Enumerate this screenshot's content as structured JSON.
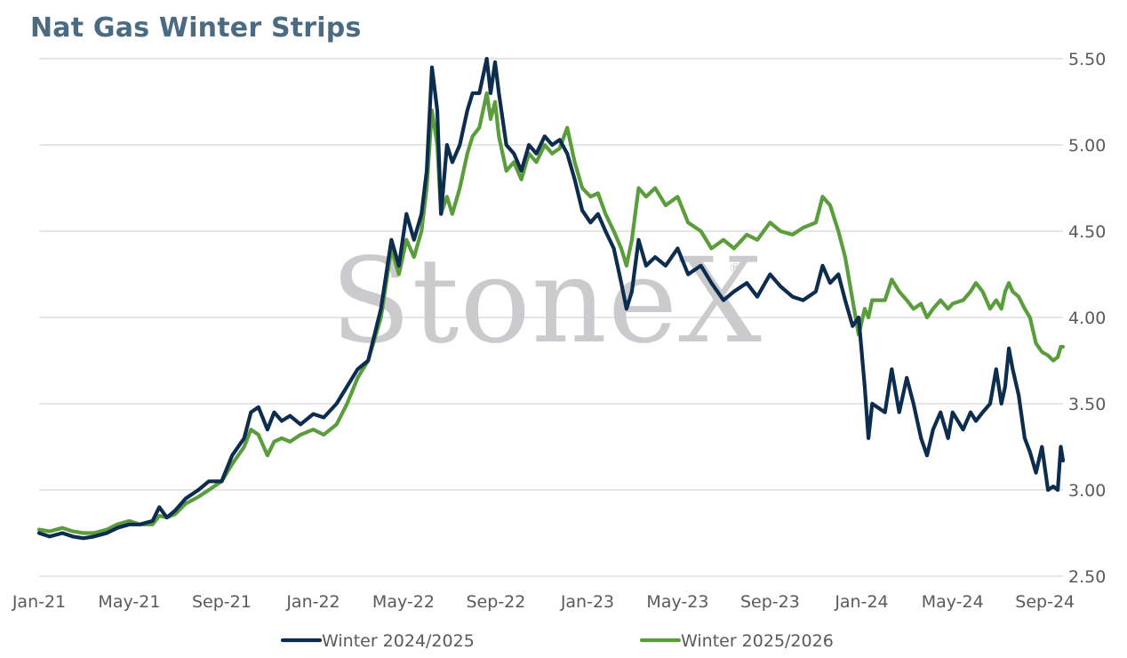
{
  "chart_title": "Nat Gas Winter Strips",
  "watermark": "StoneX",
  "chart_data": {
    "type": "line",
    "title": "Nat Gas Winter Strips",
    "xlabel": "",
    "ylabel": "",
    "x_ticks": [
      "Jan-21",
      "May-21",
      "Sep-21",
      "Jan-22",
      "May-22",
      "Sep-22",
      "Jan-23",
      "May-23",
      "Sep-23",
      "Jan-24",
      "May-24",
      "Sep-24"
    ],
    "y_ticks": [
      "2.50",
      "3.00",
      "3.50",
      "4.00",
      "4.50",
      "5.00",
      "5.50"
    ],
    "ylim": [
      2.5,
      5.5
    ],
    "xlim": [
      "2021-01-01",
      "2024-09-25"
    ],
    "y_axis_side": "right",
    "grid": "horizontal",
    "legend_position": "bottom",
    "series": [
      {
        "name": "Winter 2024/2025",
        "color": "#0d2d4e",
        "points": [
          [
            "2021-01-01",
            2.75
          ],
          [
            "2021-01-15",
            2.73
          ],
          [
            "2021-02-01",
            2.75
          ],
          [
            "2021-02-15",
            2.73
          ],
          [
            "2021-03-01",
            2.72
          ],
          [
            "2021-03-15",
            2.73
          ],
          [
            "2021-04-01",
            2.75
          ],
          [
            "2021-04-15",
            2.78
          ],
          [
            "2021-05-01",
            2.8
          ],
          [
            "2021-05-15",
            2.8
          ],
          [
            "2021-06-01",
            2.82
          ],
          [
            "2021-06-10",
            2.9
          ],
          [
            "2021-06-20",
            2.84
          ],
          [
            "2021-07-01",
            2.88
          ],
          [
            "2021-07-15",
            2.95
          ],
          [
            "2021-08-01",
            3.0
          ],
          [
            "2021-08-15",
            3.05
          ],
          [
            "2021-09-01",
            3.05
          ],
          [
            "2021-09-15",
            3.2
          ],
          [
            "2021-10-01",
            3.3
          ],
          [
            "2021-10-10",
            3.45
          ],
          [
            "2021-10-20",
            3.48
          ],
          [
            "2021-11-01",
            3.35
          ],
          [
            "2021-11-10",
            3.45
          ],
          [
            "2021-11-20",
            3.4
          ],
          [
            "2021-12-01",
            3.43
          ],
          [
            "2021-12-15",
            3.38
          ],
          [
            "2022-01-01",
            3.44
          ],
          [
            "2022-01-15",
            3.42
          ],
          [
            "2022-02-01",
            3.5
          ],
          [
            "2022-02-15",
            3.6
          ],
          [
            "2022-03-01",
            3.7
          ],
          [
            "2022-03-15",
            3.75
          ],
          [
            "2022-04-01",
            4.05
          ],
          [
            "2022-04-15",
            4.45
          ],
          [
            "2022-04-25",
            4.3
          ],
          [
            "2022-05-05",
            4.6
          ],
          [
            "2022-05-15",
            4.45
          ],
          [
            "2022-05-25",
            4.6
          ],
          [
            "2022-06-01",
            4.85
          ],
          [
            "2022-06-08",
            5.45
          ],
          [
            "2022-06-15",
            5.2
          ],
          [
            "2022-06-20",
            4.6
          ],
          [
            "2022-06-28",
            5.0
          ],
          [
            "2022-07-05",
            4.9
          ],
          [
            "2022-07-15",
            5.0
          ],
          [
            "2022-07-25",
            5.2
          ],
          [
            "2022-08-01",
            5.3
          ],
          [
            "2022-08-10",
            5.3
          ],
          [
            "2022-08-20",
            5.5
          ],
          [
            "2022-08-25",
            5.3
          ],
          [
            "2022-08-31",
            5.48
          ],
          [
            "2022-09-05",
            5.3
          ],
          [
            "2022-09-15",
            5.0
          ],
          [
            "2022-09-25",
            4.95
          ],
          [
            "2022-10-05",
            4.85
          ],
          [
            "2022-10-15",
            5.0
          ],
          [
            "2022-10-25",
            4.95
          ],
          [
            "2022-11-05",
            5.05
          ],
          [
            "2022-11-15",
            5.0
          ],
          [
            "2022-11-25",
            5.03
          ],
          [
            "2022-12-05",
            4.95
          ],
          [
            "2022-12-15",
            4.8
          ],
          [
            "2022-12-25",
            4.62
          ],
          [
            "2023-01-05",
            4.55
          ],
          [
            "2023-01-15",
            4.6
          ],
          [
            "2023-01-25",
            4.5
          ],
          [
            "2023-02-05",
            4.4
          ],
          [
            "2023-02-15",
            4.2
          ],
          [
            "2023-02-22",
            4.05
          ],
          [
            "2023-03-01",
            4.15
          ],
          [
            "2023-03-10",
            4.45
          ],
          [
            "2023-03-20",
            4.3
          ],
          [
            "2023-04-01",
            4.35
          ],
          [
            "2023-04-15",
            4.3
          ],
          [
            "2023-05-01",
            4.4
          ],
          [
            "2023-05-15",
            4.25
          ],
          [
            "2023-06-01",
            4.3
          ],
          [
            "2023-06-15",
            4.2
          ],
          [
            "2023-07-01",
            4.1
          ],
          [
            "2023-07-15",
            4.15
          ],
          [
            "2023-08-01",
            4.2
          ],
          [
            "2023-08-15",
            4.12
          ],
          [
            "2023-09-01",
            4.25
          ],
          [
            "2023-09-15",
            4.18
          ],
          [
            "2023-10-01",
            4.12
          ],
          [
            "2023-10-15",
            4.1
          ],
          [
            "2023-11-01",
            4.15
          ],
          [
            "2023-11-10",
            4.3
          ],
          [
            "2023-11-20",
            4.2
          ],
          [
            "2023-12-01",
            4.25
          ],
          [
            "2023-12-10",
            4.1
          ],
          [
            "2023-12-20",
            3.95
          ],
          [
            "2023-12-28",
            4.0
          ],
          [
            "2024-01-05",
            3.6
          ],
          [
            "2024-01-10",
            3.3
          ],
          [
            "2024-01-15",
            3.5
          ],
          [
            "2024-02-01",
            3.45
          ],
          [
            "2024-02-10",
            3.7
          ],
          [
            "2024-02-20",
            3.45
          ],
          [
            "2024-03-01",
            3.65
          ],
          [
            "2024-03-10",
            3.5
          ],
          [
            "2024-03-20",
            3.3
          ],
          [
            "2024-03-28",
            3.2
          ],
          [
            "2024-04-05",
            3.35
          ],
          [
            "2024-04-15",
            3.45
          ],
          [
            "2024-04-25",
            3.3
          ],
          [
            "2024-05-01",
            3.45
          ],
          [
            "2024-05-15",
            3.35
          ],
          [
            "2024-05-25",
            3.45
          ],
          [
            "2024-06-01",
            3.4
          ],
          [
            "2024-06-10",
            3.45
          ],
          [
            "2024-06-20",
            3.5
          ],
          [
            "2024-06-28",
            3.7
          ],
          [
            "2024-07-05",
            3.5
          ],
          [
            "2024-07-10",
            3.6
          ],
          [
            "2024-07-15",
            3.82
          ],
          [
            "2024-07-20",
            3.7
          ],
          [
            "2024-07-28",
            3.55
          ],
          [
            "2024-08-05",
            3.3
          ],
          [
            "2024-08-12",
            3.22
          ],
          [
            "2024-08-20",
            3.1
          ],
          [
            "2024-08-28",
            3.25
          ],
          [
            "2024-09-05",
            3.0
          ],
          [
            "2024-09-12",
            3.02
          ],
          [
            "2024-09-18",
            3.0
          ],
          [
            "2024-09-22",
            3.25
          ],
          [
            "2024-09-25",
            3.17
          ]
        ]
      },
      {
        "name": "Winter 2025/2026",
        "color": "#5b9d3c",
        "points": [
          [
            "2021-01-01",
            2.77
          ],
          [
            "2021-01-15",
            2.76
          ],
          [
            "2021-02-01",
            2.78
          ],
          [
            "2021-02-15",
            2.76
          ],
          [
            "2021-03-01",
            2.75
          ],
          [
            "2021-03-15",
            2.75
          ],
          [
            "2021-04-01",
            2.77
          ],
          [
            "2021-04-15",
            2.8
          ],
          [
            "2021-05-01",
            2.82
          ],
          [
            "2021-05-15",
            2.8
          ],
          [
            "2021-06-01",
            2.8
          ],
          [
            "2021-06-10",
            2.85
          ],
          [
            "2021-06-20",
            2.84
          ],
          [
            "2021-07-01",
            2.86
          ],
          [
            "2021-07-15",
            2.92
          ],
          [
            "2021-08-01",
            2.96
          ],
          [
            "2021-08-15",
            3.0
          ],
          [
            "2021-09-01",
            3.05
          ],
          [
            "2021-09-15",
            3.15
          ],
          [
            "2021-10-01",
            3.25
          ],
          [
            "2021-10-10",
            3.35
          ],
          [
            "2021-10-20",
            3.32
          ],
          [
            "2021-11-01",
            3.2
          ],
          [
            "2021-11-10",
            3.28
          ],
          [
            "2021-11-20",
            3.3
          ],
          [
            "2021-12-01",
            3.28
          ],
          [
            "2021-12-15",
            3.32
          ],
          [
            "2022-01-01",
            3.35
          ],
          [
            "2022-01-15",
            3.32
          ],
          [
            "2022-02-01",
            3.38
          ],
          [
            "2022-02-15",
            3.5
          ],
          [
            "2022-03-01",
            3.65
          ],
          [
            "2022-03-15",
            3.75
          ],
          [
            "2022-04-01",
            4.0
          ],
          [
            "2022-04-15",
            4.4
          ],
          [
            "2022-04-25",
            4.25
          ],
          [
            "2022-05-05",
            4.45
          ],
          [
            "2022-05-15",
            4.35
          ],
          [
            "2022-05-25",
            4.5
          ],
          [
            "2022-06-01",
            4.75
          ],
          [
            "2022-06-08",
            5.2
          ],
          [
            "2022-06-15",
            5.0
          ],
          [
            "2022-06-20",
            4.6
          ],
          [
            "2022-06-28",
            4.7
          ],
          [
            "2022-07-05",
            4.6
          ],
          [
            "2022-07-15",
            4.75
          ],
          [
            "2022-07-25",
            4.95
          ],
          [
            "2022-08-01",
            5.05
          ],
          [
            "2022-08-10",
            5.1
          ],
          [
            "2022-08-20",
            5.3
          ],
          [
            "2022-08-25",
            5.15
          ],
          [
            "2022-08-31",
            5.25
          ],
          [
            "2022-09-05",
            5.05
          ],
          [
            "2022-09-15",
            4.85
          ],
          [
            "2022-09-25",
            4.9
          ],
          [
            "2022-10-05",
            4.8
          ],
          [
            "2022-10-15",
            4.95
          ],
          [
            "2022-10-25",
            4.9
          ],
          [
            "2022-11-05",
            5.0
          ],
          [
            "2022-11-15",
            4.95
          ],
          [
            "2022-11-25",
            4.98
          ],
          [
            "2022-12-05",
            5.1
          ],
          [
            "2022-12-15",
            4.9
          ],
          [
            "2022-12-25",
            4.75
          ],
          [
            "2023-01-05",
            4.7
          ],
          [
            "2023-01-15",
            4.72
          ],
          [
            "2023-01-25",
            4.6
          ],
          [
            "2023-02-05",
            4.5
          ],
          [
            "2023-02-15",
            4.4
          ],
          [
            "2023-02-22",
            4.3
          ],
          [
            "2023-03-01",
            4.45
          ],
          [
            "2023-03-10",
            4.75
          ],
          [
            "2023-03-20",
            4.7
          ],
          [
            "2023-04-01",
            4.75
          ],
          [
            "2023-04-15",
            4.65
          ],
          [
            "2023-05-01",
            4.7
          ],
          [
            "2023-05-15",
            4.55
          ],
          [
            "2023-06-01",
            4.5
          ],
          [
            "2023-06-15",
            4.4
          ],
          [
            "2023-07-01",
            4.45
          ],
          [
            "2023-07-15",
            4.4
          ],
          [
            "2023-08-01",
            4.48
          ],
          [
            "2023-08-15",
            4.45
          ],
          [
            "2023-09-01",
            4.55
          ],
          [
            "2023-09-15",
            4.5
          ],
          [
            "2023-10-01",
            4.48
          ],
          [
            "2023-10-15",
            4.52
          ],
          [
            "2023-11-01",
            4.55
          ],
          [
            "2023-11-10",
            4.7
          ],
          [
            "2023-11-20",
            4.65
          ],
          [
            "2023-12-01",
            4.5
          ],
          [
            "2023-12-10",
            4.35
          ],
          [
            "2023-12-20",
            4.1
          ],
          [
            "2023-12-28",
            3.9
          ],
          [
            "2024-01-05",
            4.05
          ],
          [
            "2024-01-10",
            4.0
          ],
          [
            "2024-01-15",
            4.1
          ],
          [
            "2024-02-01",
            4.1
          ],
          [
            "2024-02-10",
            4.22
          ],
          [
            "2024-02-20",
            4.15
          ],
          [
            "2024-03-01",
            4.1
          ],
          [
            "2024-03-10",
            4.05
          ],
          [
            "2024-03-20",
            4.08
          ],
          [
            "2024-03-28",
            4.0
          ],
          [
            "2024-04-05",
            4.05
          ],
          [
            "2024-04-15",
            4.1
          ],
          [
            "2024-04-25",
            4.05
          ],
          [
            "2024-05-01",
            4.08
          ],
          [
            "2024-05-15",
            4.1
          ],
          [
            "2024-05-25",
            4.15
          ],
          [
            "2024-06-01",
            4.2
          ],
          [
            "2024-06-10",
            4.15
          ],
          [
            "2024-06-20",
            4.05
          ],
          [
            "2024-06-28",
            4.1
          ],
          [
            "2024-07-05",
            4.05
          ],
          [
            "2024-07-10",
            4.15
          ],
          [
            "2024-07-15",
            4.2
          ],
          [
            "2024-07-20",
            4.15
          ],
          [
            "2024-07-28",
            4.12
          ],
          [
            "2024-08-05",
            4.05
          ],
          [
            "2024-08-12",
            4.0
          ],
          [
            "2024-08-20",
            3.85
          ],
          [
            "2024-08-28",
            3.8
          ],
          [
            "2024-09-05",
            3.78
          ],
          [
            "2024-09-12",
            3.75
          ],
          [
            "2024-09-18",
            3.77
          ],
          [
            "2024-09-22",
            3.83
          ],
          [
            "2024-09-25",
            3.83
          ]
        ]
      }
    ]
  }
}
